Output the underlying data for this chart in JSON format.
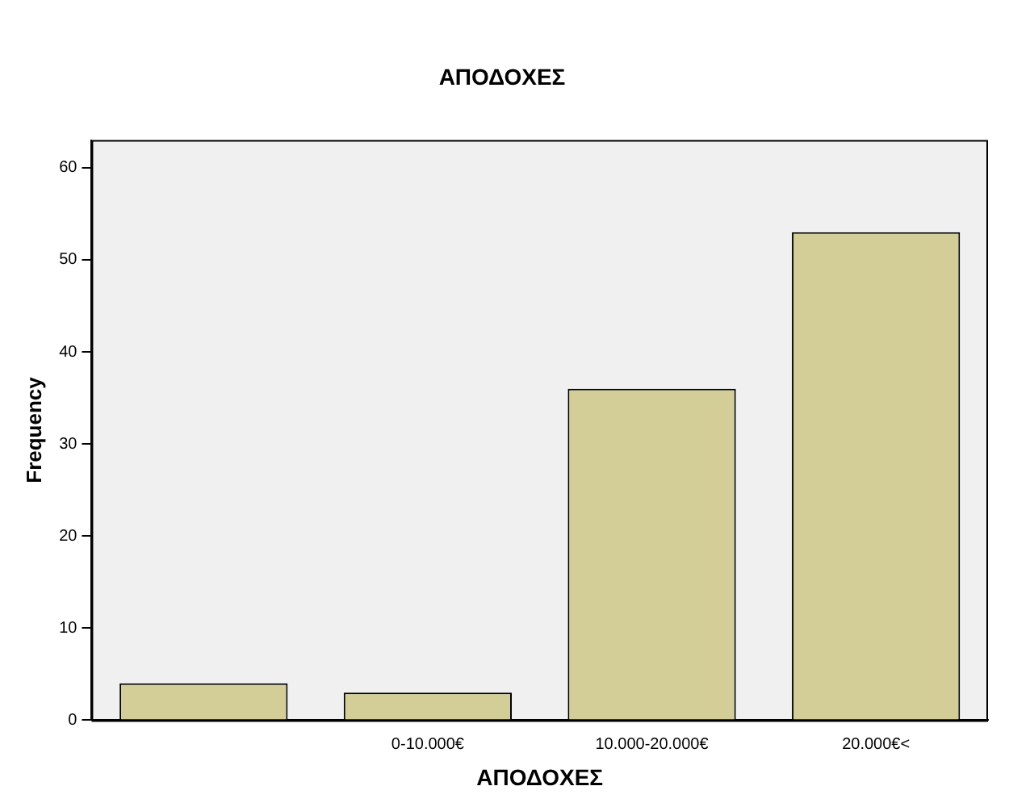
{
  "chart_data": {
    "type": "bar",
    "title": "ΑΠΟΔΟΧΕΣ",
    "xlabel": "ΑΠΟΔΟΧΕΣ",
    "ylabel": "Frequency",
    "categories": [
      null,
      "0-10.000€",
      "10.000-20.000€",
      "20.000€<"
    ],
    "values": [
      4,
      3,
      36,
      53
    ],
    "color": "#d3ce97",
    "ylim": [
      0,
      63
    ],
    "yticks": [
      0,
      10,
      20,
      30,
      40,
      50,
      60
    ],
    "grid": false,
    "legend": false
  }
}
